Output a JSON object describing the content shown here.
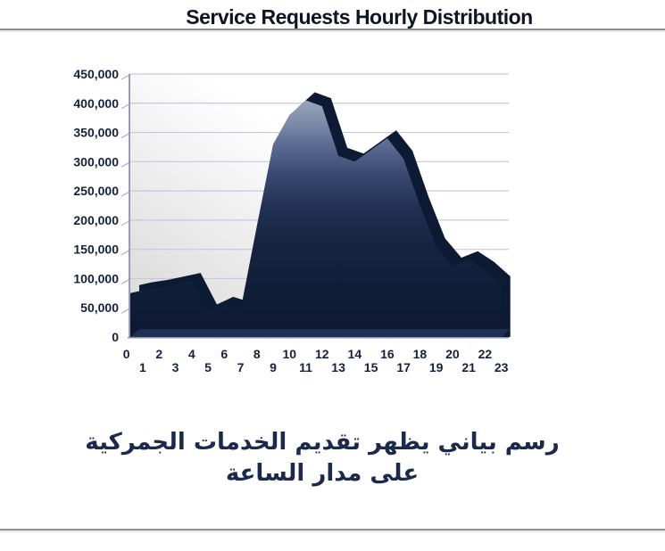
{
  "header": {
    "title": "Service Requests Hourly Distribution",
    "title_color": "#0d1424"
  },
  "caption": {
    "line1": "رسم بياني يظهر تقديم الخدمات الجمركية",
    "line2": "على مدار الساعة",
    "color": "#1b2a4c"
  },
  "chart_data": {
    "type": "area",
    "title": "Service Requests Hourly Distribution",
    "xlabel": "",
    "ylabel": "",
    "x": [
      0,
      1,
      2,
      3,
      4,
      5,
      6,
      7,
      8,
      9,
      10,
      11,
      12,
      13,
      14,
      15,
      16,
      17,
      18,
      19,
      20,
      21,
      22,
      23
    ],
    "values": [
      75000,
      80000,
      84000,
      90000,
      96000,
      42000,
      55000,
      46000,
      190000,
      330000,
      380000,
      405000,
      395000,
      310000,
      300000,
      320000,
      340000,
      305000,
      225000,
      155000,
      122000,
      133000,
      115000,
      90000
    ],
    "ylim": [
      0,
      450000
    ],
    "ytick_step": 50000,
    "ytick_labels_top_to_bottom": [
      "450,000",
      "400,000",
      "350,000",
      "300,000",
      "250,000",
      "200,000",
      "150,000",
      "100,000",
      "50,000",
      "0"
    ],
    "xtick_labels": [
      "0",
      "1",
      "2",
      "3",
      "4",
      "5",
      "6",
      "7",
      "8",
      "9",
      "10",
      "11",
      "12",
      "13",
      "14",
      "15",
      "16",
      "17",
      "18",
      "19",
      "20",
      "21",
      "22",
      "23"
    ],
    "xtick_layout": "staggered-two-rows",
    "grid": true,
    "legend": false,
    "style": {
      "area_gradient_top": "#98a6bd",
      "area_gradient_mid": "#233254",
      "area_gradient_bottom": "#0c1830",
      "extrusion_color": "#0d1a33",
      "floor_bevel_color": "#233457",
      "plot_bg_light": "#ffffff",
      "plot_bg_gray": "#d6d6d6",
      "gridline_color": "#c5c8da",
      "axis_color": "#8d92ae",
      "tick_label_color": "#14213c"
    }
  }
}
